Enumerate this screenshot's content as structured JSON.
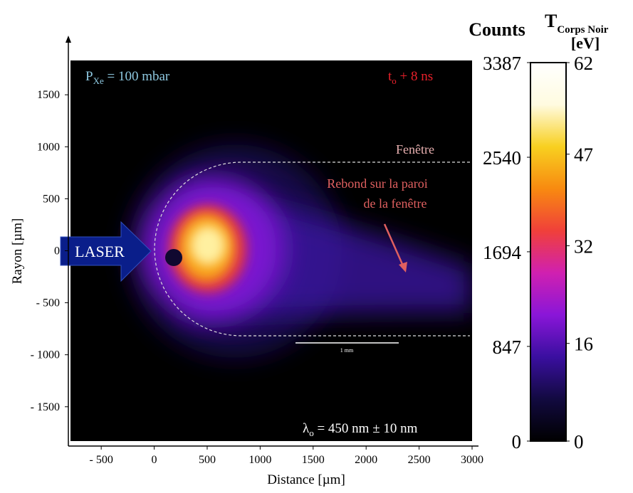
{
  "chart_data": {
    "type": "image",
    "xlabel": "Distance [µm]",
    "ylabel": "Rayon [µm]",
    "xlim": [
      -790,
      3000
    ],
    "xticks": [
      {
        "value": -500,
        "label": "- 500"
      },
      0,
      500,
      1000,
      1500,
      2000,
      2500,
      3000
    ],
    "ylim": [
      -1830,
      1830
    ],
    "yticks": [
      {
        "value": -1500,
        "label": "- 1500"
      },
      {
        "value": -1000,
        "label": "- 1000"
      },
      {
        "value": -500,
        "label": "- 500"
      },
      0,
      500,
      1000,
      1500
    ],
    "colorbar": {
      "title": "Counts",
      "lim": [
        0,
        3387
      ],
      "ticks": [
        0,
        847,
        1694,
        2540,
        3387
      ],
      "title2": {
        "main": "T",
        "sub": "Corps Noir",
        "unit": "[eV]"
      },
      "lim2": [
        0,
        62
      ],
      "ticks2": [
        0,
        16,
        32,
        47,
        62
      ],
      "colormap": [
        "#000000",
        "#120a40",
        "#3a0fa0",
        "#8a16d8",
        "#d020b0",
        "#f0403a",
        "#f88a10",
        "#f8d020",
        "#fffbe0",
        "#ffffff"
      ]
    },
    "annotations": {
      "pressure": {
        "main": "P",
        "sub": "Xe",
        "rest": " = 100 mbar"
      },
      "time": {
        "main": "t",
        "sub": "o",
        "rest": " +  8 ns"
      },
      "window": "Fenêtre",
      "rebound": [
        "Rebond sur la paroi",
        "de la fenêtre"
      ],
      "scale": "1 mm",
      "wavelength": {
        "main": "λ",
        "sub": "o",
        "rest": " = 450 nm ± 10 nm"
      },
      "laser": "LASER"
    }
  }
}
